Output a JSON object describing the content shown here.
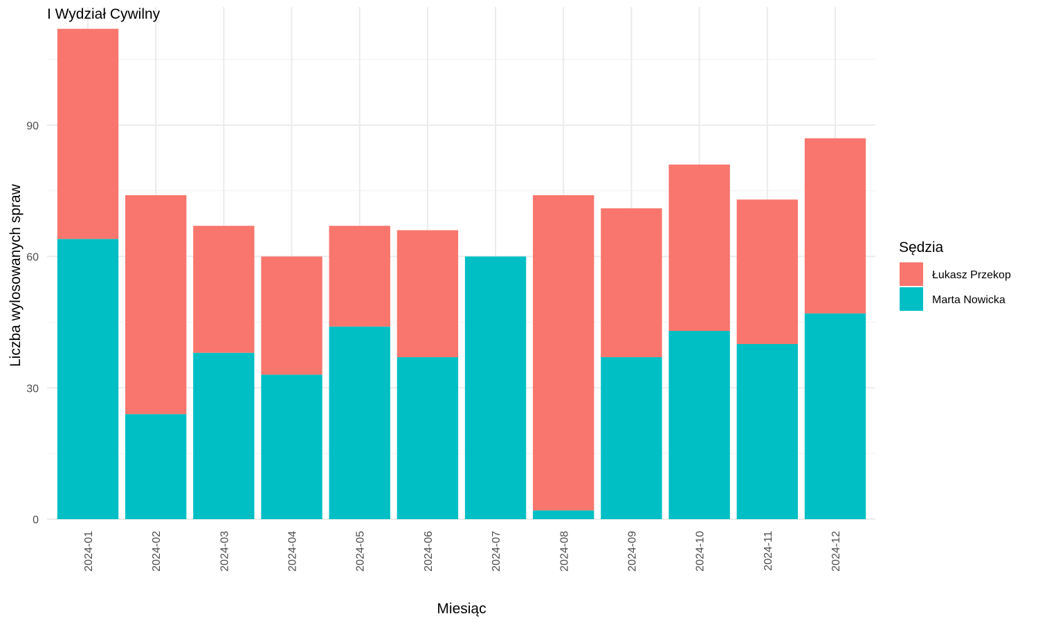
{
  "chart_data": {
    "type": "bar",
    "stacked": true,
    "title": "I Wydział Cywilny",
    "xlabel": "Miesiąc",
    "ylabel": "Liczba wylosowanych spraw",
    "categories": [
      "2024-01",
      "2024-02",
      "2024-03",
      "2024-04",
      "2024-05",
      "2024-06",
      "2024-07",
      "2024-08",
      "2024-09",
      "2024-10",
      "2024-11",
      "2024-12"
    ],
    "series": [
      {
        "name": "Marta Nowicka",
        "color": "#00BFC4",
        "values": [
          64,
          24,
          38,
          33,
          44,
          37,
          60,
          2,
          37,
          43,
          40,
          47
        ]
      },
      {
        "name": "Łukasz Przekop",
        "color": "#F8766D",
        "values": [
          48,
          50,
          29,
          27,
          23,
          29,
          0,
          72,
          34,
          38,
          33,
          40
        ]
      }
    ],
    "ylim": [
      0,
      117
    ],
    "yticks": [
      0,
      30,
      60,
      90
    ],
    "grid": true,
    "legend": {
      "title": "Sędzia",
      "position": "right",
      "order": [
        "Łukasz Przekop",
        "Marta Nowicka"
      ]
    }
  }
}
